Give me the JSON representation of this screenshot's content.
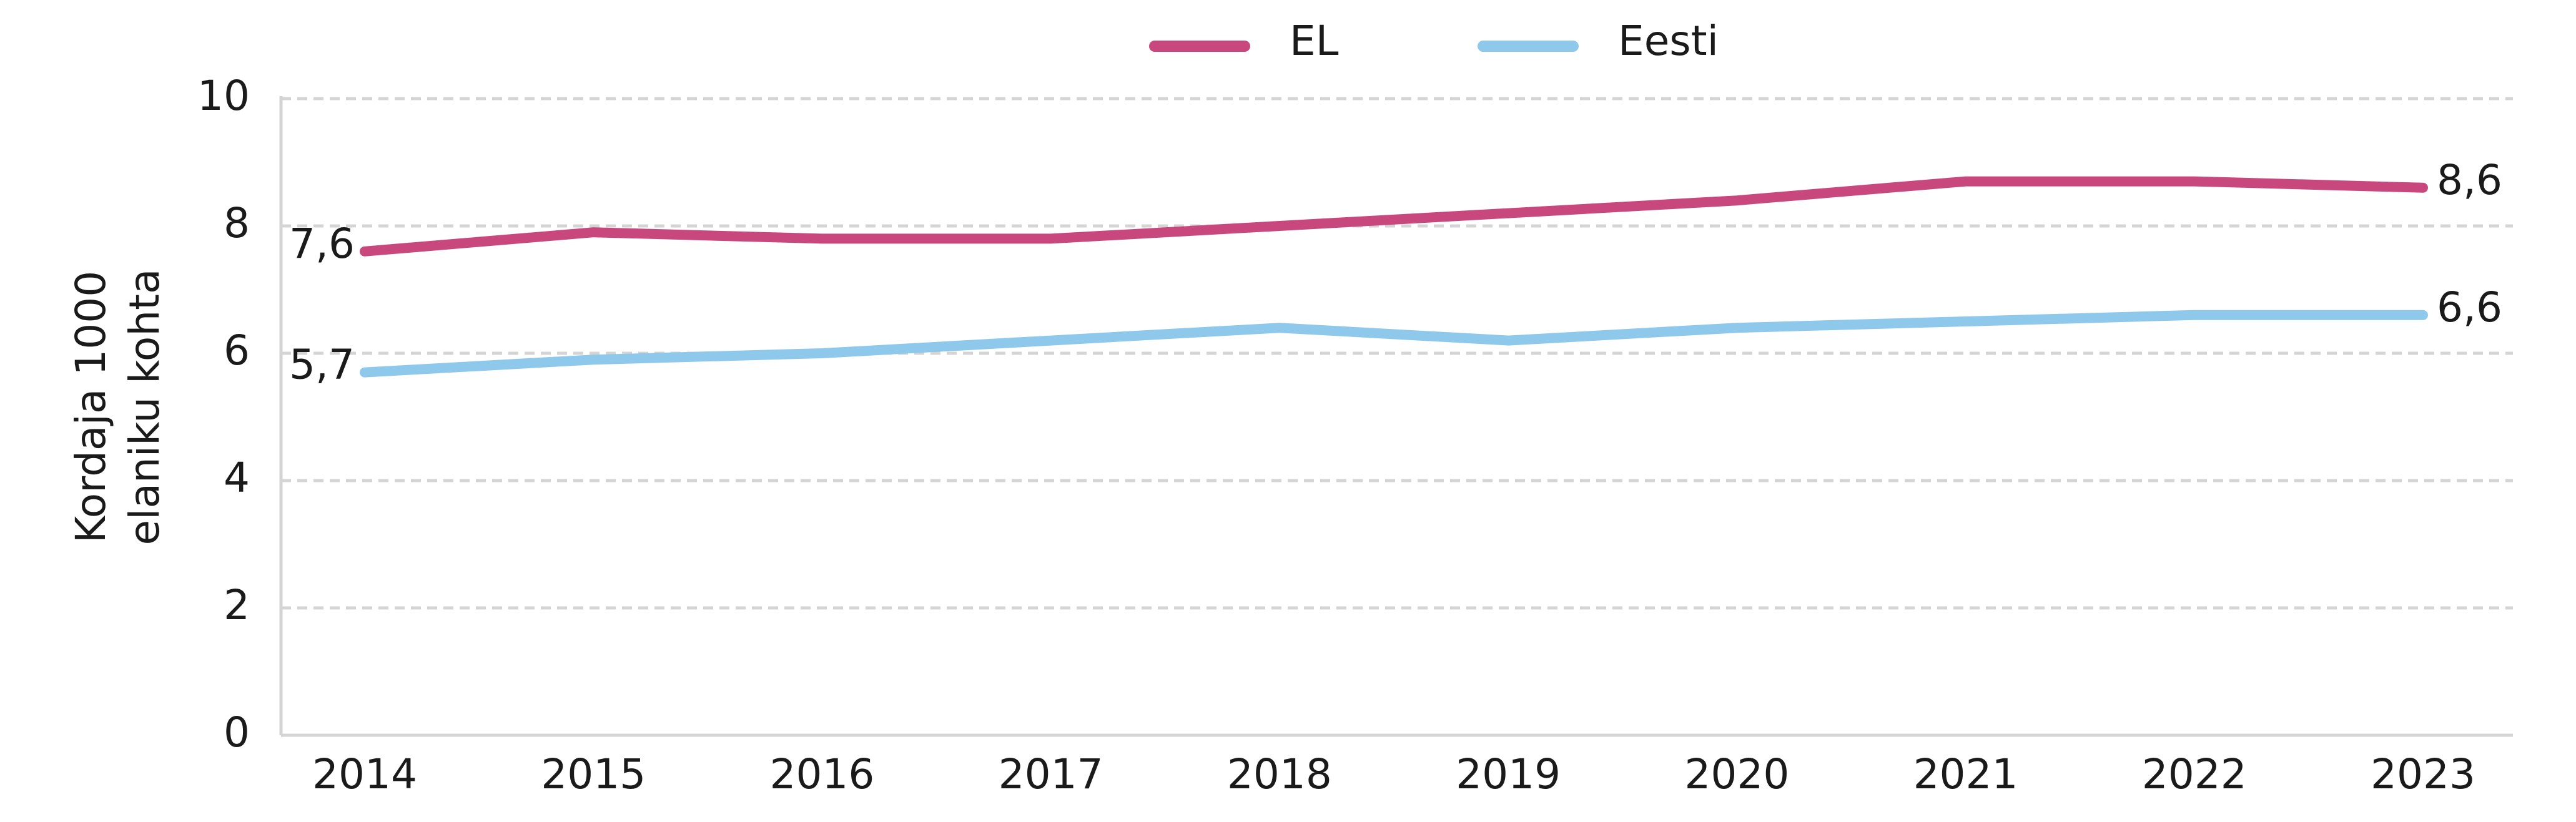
{
  "chart_data": {
    "type": "line",
    "y_label": [
      "Kordaja 1000",
      "elaniku kohta"
    ],
    "categories": [
      "2014",
      "2015",
      "2016",
      "2017",
      "2018",
      "2019",
      "2020",
      "2021",
      "2022",
      "2023"
    ],
    "series": [
      {
        "name": "EL",
        "color": "#c8487e",
        "values": [
          7.6,
          7.9,
          7.8,
          7.8,
          8.0,
          8.2,
          8.4,
          8.7,
          8.7,
          8.6
        ],
        "value_labels": [
          "7,6",
          null,
          null,
          null,
          null,
          null,
          null,
          null,
          null,
          "8,6"
        ]
      },
      {
        "name": "Eesti",
        "color": "#8ec8ea",
        "values": [
          5.7,
          5.9,
          6.0,
          6.2,
          6.4,
          6.2,
          6.4,
          6.5,
          6.6,
          6.6
        ],
        "value_labels": [
          "5,7",
          null,
          null,
          null,
          null,
          null,
          null,
          null,
          null,
          "6,6"
        ]
      }
    ],
    "ylim": [
      0,
      10
    ],
    "yticks": [
      0,
      2,
      4,
      6,
      8,
      10
    ],
    "grid": true,
    "legend": "top"
  }
}
